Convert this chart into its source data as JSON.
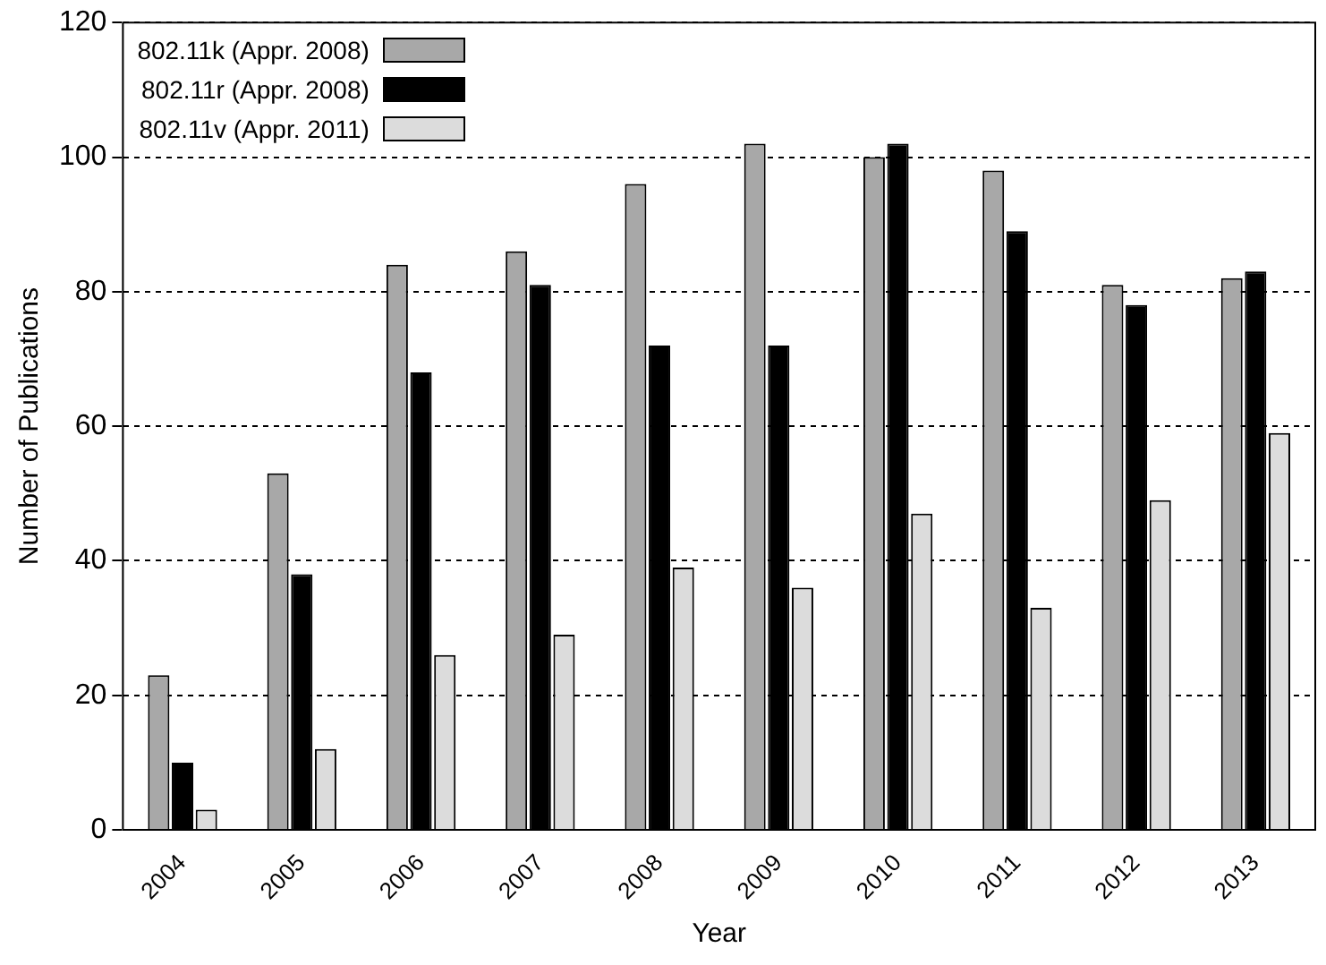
{
  "chart_data": {
    "type": "bar",
    "xlabel": "Year",
    "ylabel": "Number of Publications",
    "categories": [
      "2004",
      "2005",
      "2006",
      "2007",
      "2008",
      "2009",
      "2010",
      "2011",
      "2012",
      "2013"
    ],
    "series": [
      {
        "name": "802.11k (Appr. 2008)",
        "color": "#a8a8a8",
        "values": [
          23,
          53,
          84,
          86,
          96,
          102,
          100,
          98,
          81,
          82
        ]
      },
      {
        "name": "802.11r (Appr. 2008)",
        "color": "#000000",
        "values": [
          10,
          38,
          68,
          81,
          72,
          72,
          102,
          89,
          78,
          83
        ]
      },
      {
        "name": "802.11v (Appr. 2011)",
        "color": "#dcdcdc",
        "values": [
          3,
          12,
          26,
          29,
          39,
          36,
          47,
          33,
          49,
          59
        ]
      }
    ],
    "ylim": [
      0,
      120
    ],
    "yticks": [
      0,
      20,
      40,
      60,
      80,
      100,
      120
    ],
    "grid": "y",
    "legend": "top left"
  }
}
